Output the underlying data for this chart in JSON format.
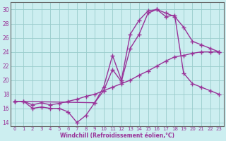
{
  "xlabel": "Windchill (Refroidissement éolien,°C)",
  "bg_color": "#cceef0",
  "line_color": "#993399",
  "grid_color": "#99cccc",
  "spine_color": "#666666",
  "xlim": [
    -0.5,
    23.5
  ],
  "ylim": [
    13.5,
    31
  ],
  "xticks": [
    0,
    1,
    2,
    3,
    4,
    5,
    6,
    7,
    8,
    9,
    10,
    11,
    12,
    13,
    14,
    15,
    16,
    17,
    18,
    19,
    20,
    21,
    22,
    23
  ],
  "yticks": [
    14,
    16,
    18,
    20,
    22,
    24,
    26,
    28,
    30
  ],
  "line1_x": [
    0,
    1,
    2,
    3,
    4,
    5,
    6,
    7,
    8,
    9,
    10,
    11,
    12,
    13,
    14,
    15,
    16,
    17,
    18,
    19,
    20,
    21,
    22,
    23
  ],
  "line1_y": [
    17.0,
    17.0,
    16.0,
    16.2,
    16.0,
    16.0,
    15.5,
    14.0,
    15.0,
    16.8,
    19.0,
    23.5,
    20.0,
    26.5,
    28.5,
    29.8,
    30.0,
    29.5,
    29.0,
    27.5,
    25.5,
    25.0,
    24.5,
    24.0
  ],
  "line2_x": [
    0,
    9,
    10,
    11,
    12,
    13,
    14,
    15,
    16,
    17,
    18,
    19,
    20,
    21,
    22,
    23
  ],
  "line2_y": [
    17.0,
    16.8,
    18.5,
    21.5,
    19.8,
    24.5,
    26.5,
    29.5,
    30.0,
    29.0,
    29.2,
    21.0,
    19.5,
    19.0,
    18.5,
    18.0
  ],
  "line3_x": [
    0,
    1,
    2,
    3,
    4,
    5,
    6,
    7,
    8,
    9,
    10,
    11,
    12,
    13,
    14,
    15,
    16,
    17,
    18,
    19,
    20,
    21,
    22,
    23
  ],
  "line3_y": [
    17.0,
    17.0,
    16.5,
    16.8,
    16.5,
    16.7,
    17.0,
    17.3,
    17.7,
    18.0,
    18.5,
    19.0,
    19.5,
    20.0,
    20.7,
    21.3,
    22.0,
    22.7,
    23.3,
    23.5,
    23.8,
    24.0,
    24.0,
    24.0
  ],
  "marker": "+",
  "markersize": 4,
  "linewidth": 1.0,
  "tick_fontsize": 5.0,
  "xlabel_fontsize": 5.5
}
